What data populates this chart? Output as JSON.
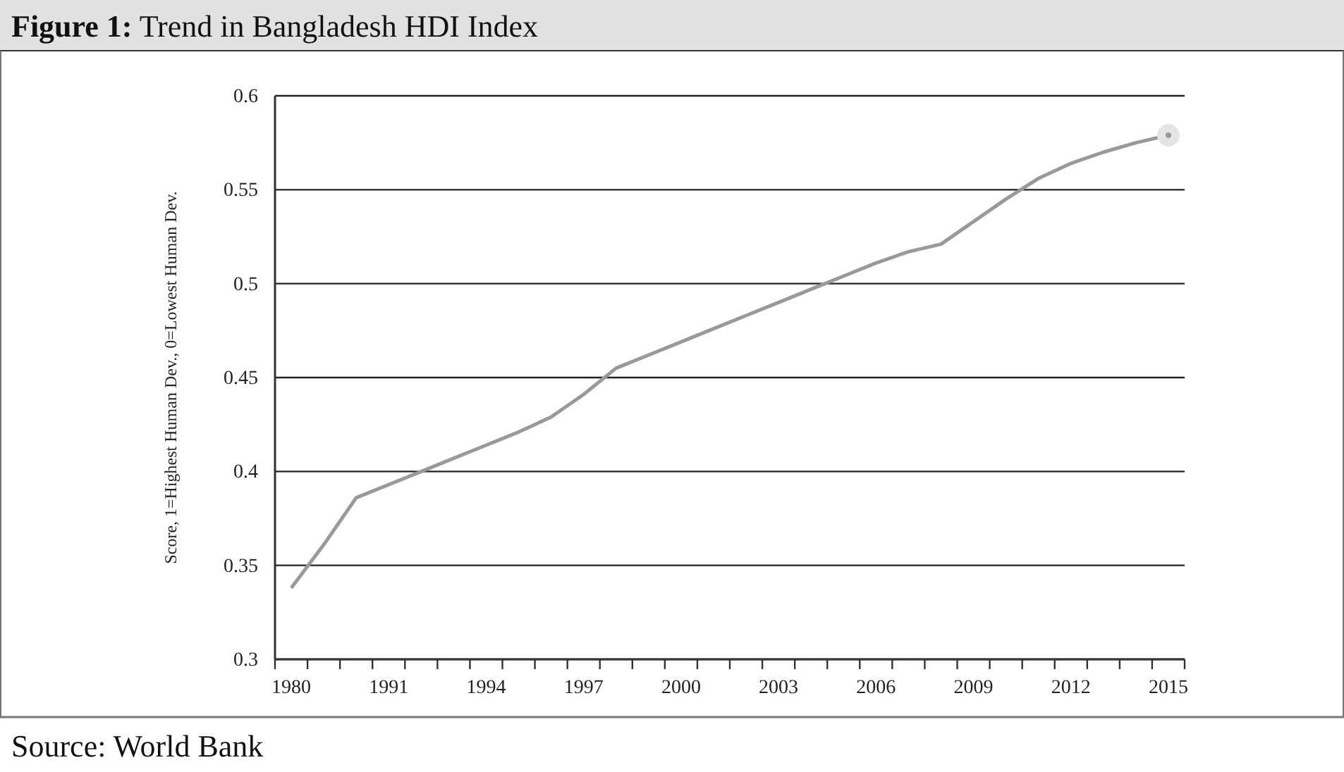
{
  "chart_data": {
    "type": "line",
    "title": "Figure 1: Trend in Bangladesh HDI Index",
    "ylabel": "Score, 1=Highest Human Dev., 0=Lowest Human Dev.",
    "categories": [
      "1980",
      null,
      null,
      "1991",
      null,
      null,
      "1994",
      null,
      null,
      "1997",
      null,
      null,
      "2000",
      null,
      null,
      "2003",
      null,
      null,
      "2006",
      null,
      null,
      "2009",
      null,
      null,
      "2012",
      null,
      null,
      "2015"
    ],
    "series": [
      {
        "color": "#999999",
        "marker": "none",
        "values": [
          0.338,
          0.361,
          0.386,
          0.393,
          0.4,
          0.407,
          0.414,
          0.421,
          0.429,
          0.441,
          0.455,
          0.462,
          0.469,
          0.476,
          0.483,
          0.49,
          0.497,
          0.504,
          0.511,
          0.517,
          0.521,
          0.533,
          0.545,
          0.556,
          0.564,
          0.57,
          0.575,
          0.579
        ]
      },
      {
        "type": "scatter",
        "color": "#999999",
        "marker": "circle",
        "values": [
          null,
          null,
          null,
          null,
          null,
          null,
          null,
          null,
          null,
          null,
          null,
          null,
          null,
          null,
          null,
          null,
          null,
          null,
          null,
          null,
          null,
          null,
          null,
          null,
          null,
          null,
          null,
          0.579
        ]
      }
    ],
    "ylim": [
      0.3,
      0.6
    ],
    "yticks": [
      0.3,
      0.35,
      0.4,
      0.45,
      0.5,
      0.55,
      0.6
    ],
    "grid": "y",
    "line_style": "solid",
    "annotations": [
      "Source: World Bank"
    ]
  }
}
